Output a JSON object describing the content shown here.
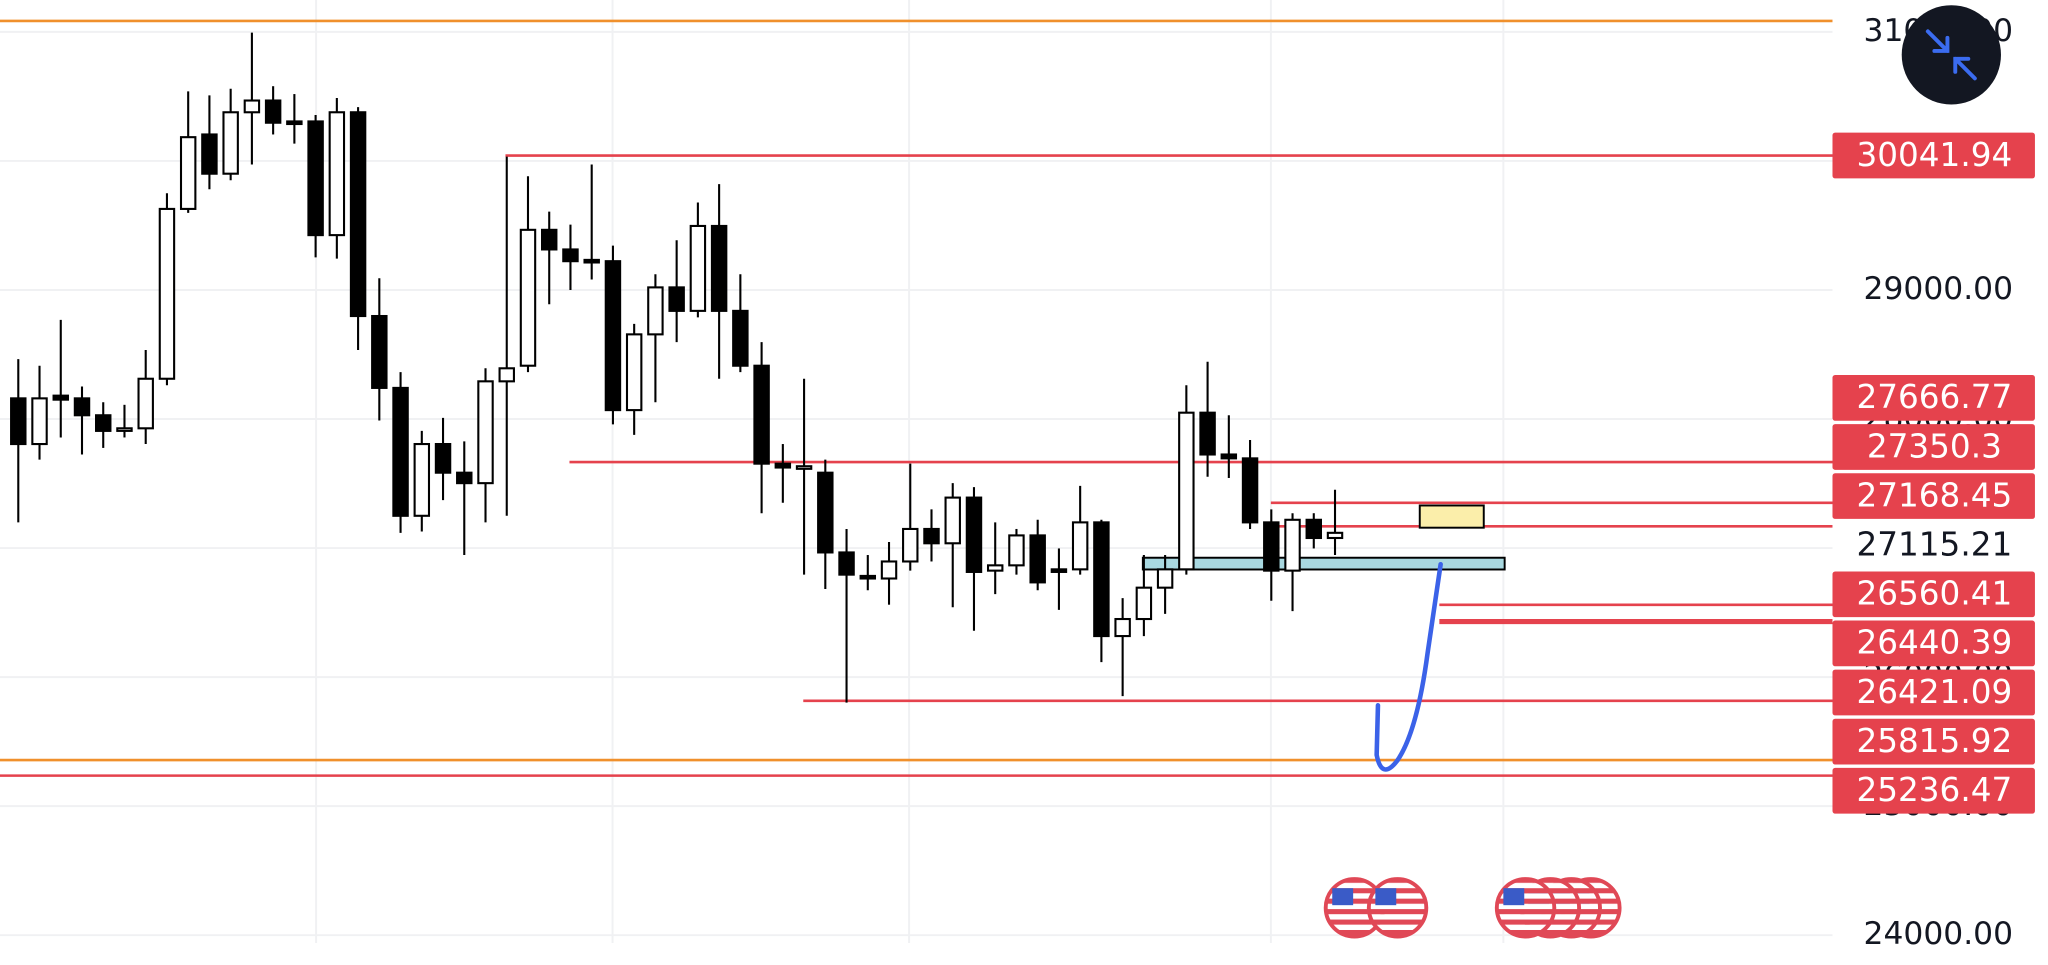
{
  "chart_data": {
    "type": "candlestick",
    "categories": [
      null,
      null,
      null,
      null,
      null,
      null,
      null,
      null,
      null,
      null,
      null,
      null,
      null,
      null,
      null,
      null,
      null,
      null,
      null,
      null,
      null,
      null,
      null,
      null,
      null,
      null,
      null,
      null,
      null,
      null,
      null,
      null,
      null,
      null,
      null,
      null,
      null,
      null,
      null,
      null,
      null,
      null,
      null,
      null,
      null,
      null,
      null,
      null,
      null,
      null,
      null,
      null,
      null,
      null,
      null,
      null,
      null,
      null,
      null,
      null,
      null,
      null,
      null
    ],
    "open": [
      28160,
      27806,
      28181,
      28160,
      28029,
      27908,
      27928,
      28312,
      29628,
      30205,
      29901,
      30377,
      30468,
      30306,
      30306,
      29425,
      30377,
      28798,
      28241,
      27250,
      27806,
      27584,
      27503,
      28292,
      28413,
      29466,
      29314,
      29233,
      29223,
      28069,
      28656,
      29020,
      28838,
      29496,
      28838,
      28413,
      27654,
      27614,
      27584,
      26966,
      26784,
      26764,
      26896,
      27148,
      27037,
      27391,
      26825,
      26866,
      27098,
      26835,
      26835,
      27199,
      26318,
      26450,
      26693,
      26835,
      28049,
      27725,
      27695,
      27199,
      26825,
      27219,
      27078
    ],
    "high": [
      28464,
      28413,
      28768,
      28252,
      28130,
      28110,
      28535,
      29749,
      30539,
      30508,
      30559,
      30994,
      30579,
      30518,
      30356,
      30488,
      30417,
      29091,
      28363,
      27908,
      28009,
      27827,
      28393,
      30033,
      29881,
      29607,
      29506,
      29972,
      29344,
      28737,
      29122,
      29385,
      29678,
      29820,
      29122,
      28596,
      27806,
      28312,
      27685,
      27148,
      26946,
      27047,
      27654,
      27300,
      27503,
      27472,
      27199,
      27148,
      27219,
      26997,
      27482,
      27219,
      26612,
      26946,
      26946,
      28262,
      28444,
      28029,
      27837,
      27300,
      27270,
      27270,
      27452
    ],
    "low": [
      27199,
      27685,
      27857,
      27725,
      27776,
      27857,
      27806,
      28262,
      29597,
      29780,
      29850,
      29972,
      30205,
      30134,
      29253,
      29243,
      28535,
      27988,
      27118,
      27128,
      27371,
      26946,
      27199,
      27250,
      28363,
      28889,
      29000,
      29081,
      27958,
      27877,
      28130,
      28596,
      28788,
      28312,
      28363,
      27270,
      27351,
      26794,
      26683,
      25802,
      26673,
      26561,
      26825,
      26896,
      26541,
      26359,
      26643,
      26794,
      26673,
      26521,
      26794,
      26116,
      25853,
      26318,
      26490,
      26794,
      27553,
      27543,
      27148,
      26592,
      26511,
      26997,
      26946
    ],
    "close": [
      27806,
      28160,
      28150,
      28029,
      27908,
      27928,
      28312,
      29628,
      30184,
      29901,
      30377,
      30468,
      30296,
      30286,
      29425,
      30377,
      28798,
      28241,
      27250,
      27806,
      27584,
      27503,
      28292,
      28393,
      29466,
      29314,
      29223,
      29213,
      28069,
      28656,
      29020,
      28838,
      29496,
      28838,
      28413,
      27654,
      27624,
      27634,
      26966,
      26794,
      26764,
      26896,
      27148,
      27037,
      27391,
      26815,
      26866,
      27098,
      26734,
      26815,
      27199,
      26318,
      26450,
      26693,
      26835,
      28049,
      27725,
      27695,
      27199,
      26825,
      27219,
      27078,
      27118
    ],
    "up_color": "#ffffff",
    "down_color": "#000000",
    "ylim": [
      23769,
      31247
    ],
    "yticks": [
      {
        "value": 24000,
        "label": "24000.00"
      },
      {
        "value": 25000,
        "label": "25000.00"
      },
      {
        "value": 26000,
        "label": "26000.00"
      },
      {
        "value": 27000,
        "label": "27000.00"
      },
      {
        "value": 28000,
        "label": "28000.00"
      },
      {
        "value": 29000,
        "label": "29000.00"
      },
      {
        "value": 30000,
        "label": "30000.00"
      },
      {
        "value": 31000,
        "label": "31000.00"
      }
    ],
    "grid": true,
    "levels": [
      {
        "value": 30041.94,
        "color": "#e5424d"
      },
      {
        "value": 27666.77,
        "color": "#e5424d"
      },
      {
        "value": 27350.3,
        "color": "#e5424d"
      },
      {
        "value": 27168.45,
        "color": "#e5424d"
      },
      {
        "value": 26560.41,
        "color": "#e5424d"
      },
      {
        "value": 26440.39,
        "color": "#e5424d"
      },
      {
        "value": 26421.09,
        "color": "#e5424d"
      },
      {
        "value": 25815.92,
        "color": "#e5424d"
      },
      {
        "value": 25236.47,
        "color": "#e5424d"
      }
    ],
    "guide_lines": [
      {
        "value": 31085,
        "color": "#f0902c"
      },
      {
        "value": 25357,
        "color": "#f0902c"
      }
    ],
    "last_price": 27115.21
  }
}
